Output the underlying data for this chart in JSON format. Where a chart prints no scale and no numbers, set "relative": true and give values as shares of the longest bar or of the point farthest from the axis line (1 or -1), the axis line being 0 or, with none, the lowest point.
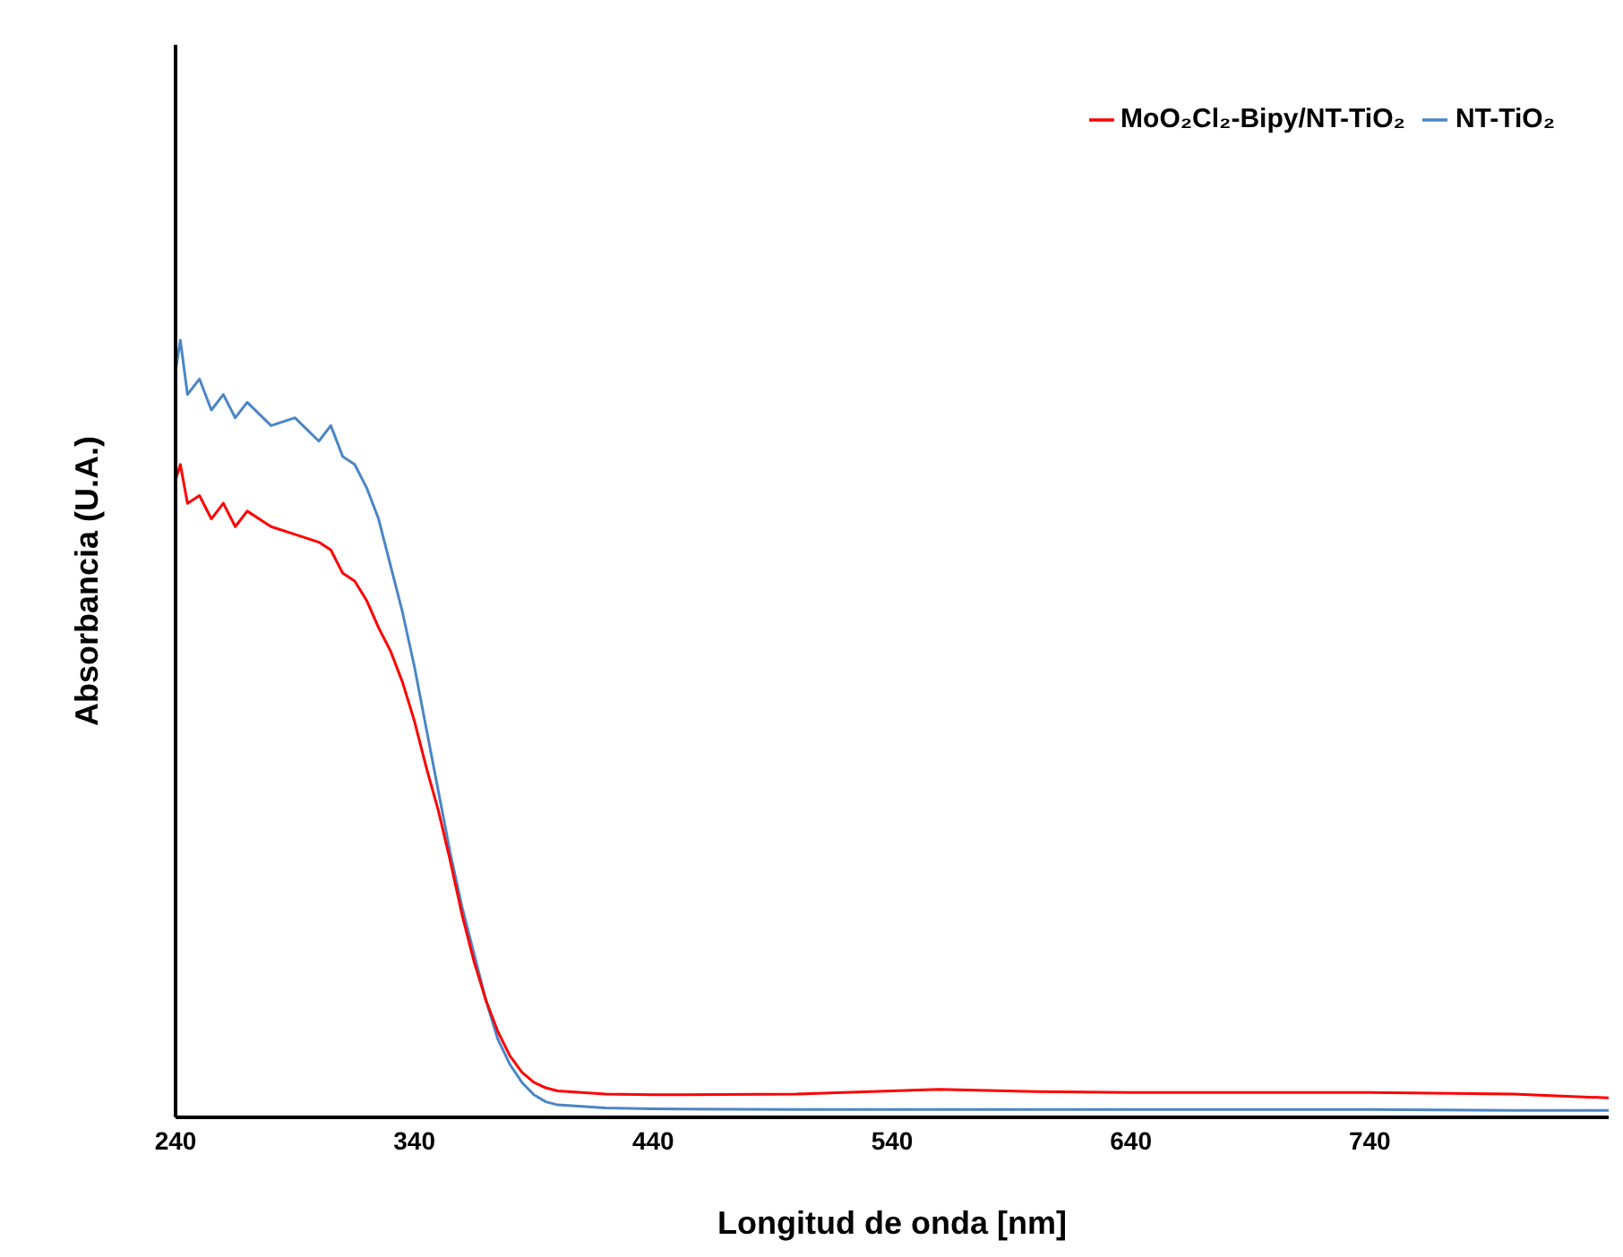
{
  "chart_data": {
    "type": "line",
    "relative": true,
    "xlabel": "Longitud de onda [nm]",
    "ylabel": "Absorbancia (U.A.)",
    "xlim": [
      240,
      840
    ],
    "xticks": [
      240,
      340,
      440,
      540,
      640,
      740
    ],
    "legend": "top right",
    "grid": false,
    "marker": "none",
    "x": [
      240,
      242,
      245,
      250,
      255,
      260,
      265,
      270,
      280,
      290,
      300,
      305,
      310,
      315,
      320,
      325,
      330,
      335,
      340,
      345,
      350,
      355,
      360,
      365,
      370,
      375,
      380,
      385,
      390,
      395,
      400,
      420,
      440,
      500,
      560,
      600,
      640,
      700,
      740,
      800,
      840
    ],
    "series": [
      {
        "name": "NT-TiO₂",
        "color": "#4a86c5",
        "values": [
          0.96,
          1.0,
          0.93,
          0.95,
          0.91,
          0.93,
          0.9,
          0.92,
          0.89,
          0.9,
          0.87,
          0.89,
          0.85,
          0.84,
          0.81,
          0.77,
          0.71,
          0.65,
          0.58,
          0.5,
          0.42,
          0.34,
          0.27,
          0.21,
          0.15,
          0.1,
          0.068,
          0.045,
          0.029,
          0.02,
          0.016,
          0.012,
          0.011,
          0.01,
          0.01,
          0.01,
          0.01,
          0.01,
          0.01,
          0.009,
          0.009
        ]
      },
      {
        "name": "MoO₂Cl₂-Bipy/NT-TiO₂",
        "color": "#ff0000",
        "values": [
          0.82,
          0.84,
          0.79,
          0.8,
          0.77,
          0.79,
          0.76,
          0.78,
          0.76,
          0.75,
          0.74,
          0.73,
          0.7,
          0.69,
          0.665,
          0.63,
          0.6,
          0.56,
          0.51,
          0.45,
          0.395,
          0.33,
          0.26,
          0.2,
          0.15,
          0.11,
          0.079,
          0.058,
          0.045,
          0.038,
          0.034,
          0.03,
          0.029,
          0.03,
          0.036,
          0.033,
          0.032,
          0.032,
          0.032,
          0.03,
          0.025
        ]
      }
    ]
  }
}
